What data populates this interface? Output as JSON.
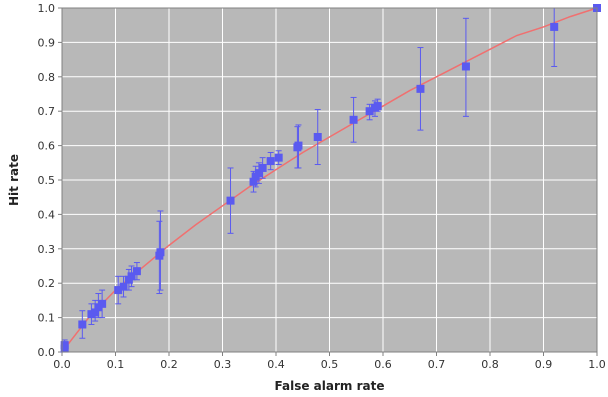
{
  "chart_data": {
    "type": "scatter",
    "title": "",
    "xlabel": "False alarm rate",
    "ylabel": "Hit rate",
    "xlim": [
      0.0,
      1.0
    ],
    "ylim": [
      0.0,
      1.0
    ],
    "x_ticks": [
      "0.0",
      "0.1",
      "0.2",
      "0.3",
      "0.4",
      "0.5",
      "0.6",
      "0.7",
      "0.8",
      "0.9",
      "1.0"
    ],
    "y_ticks": [
      "0.0",
      "0.1",
      "0.2",
      "0.3",
      "0.4",
      "0.5",
      "0.6",
      "0.7",
      "0.8",
      "0.9",
      "1.0"
    ],
    "grid": true,
    "legend": "none",
    "colors": {
      "plot_background": "#b8b8b8",
      "grid": "#ffffff",
      "points": "#5a5af0",
      "error_bars": "#5a5af0",
      "curve": "#f07070"
    },
    "series": [
      {
        "type": "scatter_with_error_bars",
        "points": [
          {
            "x": 0.005,
            "y": 0.01,
            "lo": 0.0,
            "hi": 0.025
          },
          {
            "x": 0.005,
            "y": 0.02,
            "lo": 0.005,
            "hi": 0.035
          },
          {
            "x": 0.038,
            "y": 0.08,
            "lo": 0.04,
            "hi": 0.12
          },
          {
            "x": 0.055,
            "y": 0.11,
            "lo": 0.08,
            "hi": 0.14
          },
          {
            "x": 0.062,
            "y": 0.115,
            "lo": 0.09,
            "hi": 0.15
          },
          {
            "x": 0.068,
            "y": 0.13,
            "lo": 0.1,
            "hi": 0.17
          },
          {
            "x": 0.075,
            "y": 0.14,
            "lo": 0.1,
            "hi": 0.18
          },
          {
            "x": 0.105,
            "y": 0.18,
            "lo": 0.14,
            "hi": 0.22
          },
          {
            "x": 0.115,
            "y": 0.19,
            "lo": 0.16,
            "hi": 0.22
          },
          {
            "x": 0.125,
            "y": 0.21,
            "lo": 0.18,
            "hi": 0.24
          },
          {
            "x": 0.13,
            "y": 0.22,
            "lo": 0.19,
            "hi": 0.25
          },
          {
            "x": 0.14,
            "y": 0.235,
            "lo": 0.21,
            "hi": 0.26
          },
          {
            "x": 0.182,
            "y": 0.28,
            "lo": 0.17,
            "hi": 0.38
          },
          {
            "x": 0.184,
            "y": 0.29,
            "lo": 0.18,
            "hi": 0.41
          },
          {
            "x": 0.315,
            "y": 0.44,
            "lo": 0.345,
            "hi": 0.535
          },
          {
            "x": 0.358,
            "y": 0.495,
            "lo": 0.465,
            "hi": 0.525
          },
          {
            "x": 0.362,
            "y": 0.51,
            "lo": 0.48,
            "hi": 0.54
          },
          {
            "x": 0.368,
            "y": 0.52,
            "lo": 0.49,
            "hi": 0.55
          },
          {
            "x": 0.375,
            "y": 0.535,
            "lo": 0.505,
            "hi": 0.565
          },
          {
            "x": 0.39,
            "y": 0.555,
            "lo": 0.53,
            "hi": 0.58
          },
          {
            "x": 0.405,
            "y": 0.565,
            "lo": 0.545,
            "hi": 0.585
          },
          {
            "x": 0.44,
            "y": 0.595,
            "lo": 0.535,
            "hi": 0.655
          },
          {
            "x": 0.442,
            "y": 0.6,
            "lo": 0.535,
            "hi": 0.66
          },
          {
            "x": 0.478,
            "y": 0.625,
            "lo": 0.545,
            "hi": 0.705
          },
          {
            "x": 0.545,
            "y": 0.675,
            "lo": 0.61,
            "hi": 0.74
          },
          {
            "x": 0.575,
            "y": 0.7,
            "lo": 0.675,
            "hi": 0.72
          },
          {
            "x": 0.585,
            "y": 0.71,
            "lo": 0.685,
            "hi": 0.73
          },
          {
            "x": 0.59,
            "y": 0.715,
            "lo": 0.7,
            "hi": 0.735
          },
          {
            "x": 0.67,
            "y": 0.765,
            "lo": 0.645,
            "hi": 0.885
          },
          {
            "x": 0.755,
            "y": 0.83,
            "lo": 0.685,
            "hi": 0.97
          },
          {
            "x": 0.92,
            "y": 0.945,
            "lo": 0.83,
            "hi": 1.0
          },
          {
            "x": 1.0,
            "y": 1.0,
            "lo": 1.0,
            "hi": 1.0
          }
        ]
      },
      {
        "type": "line",
        "x": [
          0.0,
          0.05,
          0.1,
          0.15,
          0.2,
          0.25,
          0.3,
          0.35,
          0.4,
          0.45,
          0.5,
          0.55,
          0.6,
          0.65,
          0.7,
          0.75,
          0.8,
          0.85,
          0.9,
          0.95,
          1.0
        ],
        "y": [
          0.0,
          0.1,
          0.18,
          0.245,
          0.31,
          0.37,
          0.425,
          0.48,
          0.53,
          0.58,
          0.625,
          0.67,
          0.715,
          0.76,
          0.8,
          0.84,
          0.88,
          0.92,
          0.945,
          0.975,
          1.0
        ]
      }
    ]
  }
}
